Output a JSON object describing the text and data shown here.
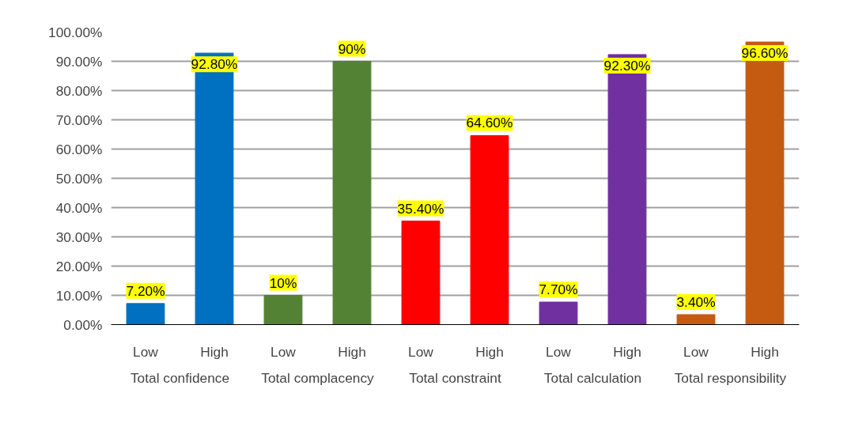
{
  "chart_data": {
    "type": "bar",
    "categories": [
      "Low",
      "High",
      "Low",
      "High",
      "Low",
      "High",
      "Low",
      "High",
      "Low",
      "High"
    ],
    "values": [
      7.2,
      92.8,
      10,
      90,
      35.4,
      64.6,
      7.7,
      92.3,
      3.4,
      96.6
    ],
    "colors": [
      "#0070c0",
      "#0070c0",
      "#548235",
      "#548235",
      "#ff0000",
      "#ff0000",
      "#7030a0",
      "#7030a0",
      "#c55a11",
      "#c55a11"
    ],
    "value_labels": [
      "7.20%",
      "92.80%",
      "10%",
      "90%",
      "35.40%",
      "64.60%",
      "7.70%",
      "92.30%",
      "3.40%",
      "96.60%"
    ],
    "annotations": [
      "Total confidence",
      "Total complacency",
      "Total constraint",
      "Total calculation",
      "Total responsibility"
    ],
    "ylim": [
      0,
      100
    ],
    "yticks": [
      {
        "value": 0,
        "label": "0.00%"
      },
      {
        "value": 10,
        "label": "10.00%"
      },
      {
        "value": 20,
        "label": "20.00%"
      },
      {
        "value": 30,
        "label": "30.00%"
      },
      {
        "value": 40,
        "label": "40.00%"
      },
      {
        "value": 50,
        "label": "50.00%"
      },
      {
        "value": 60,
        "label": "60.00%"
      },
      {
        "value": 70,
        "label": "70.00%"
      },
      {
        "value": 80,
        "label": "80.00%"
      },
      {
        "value": 90,
        "label": "90.00%"
      },
      {
        "value": 100,
        "label": "100.00%"
      }
    ],
    "grid": "y"
  }
}
